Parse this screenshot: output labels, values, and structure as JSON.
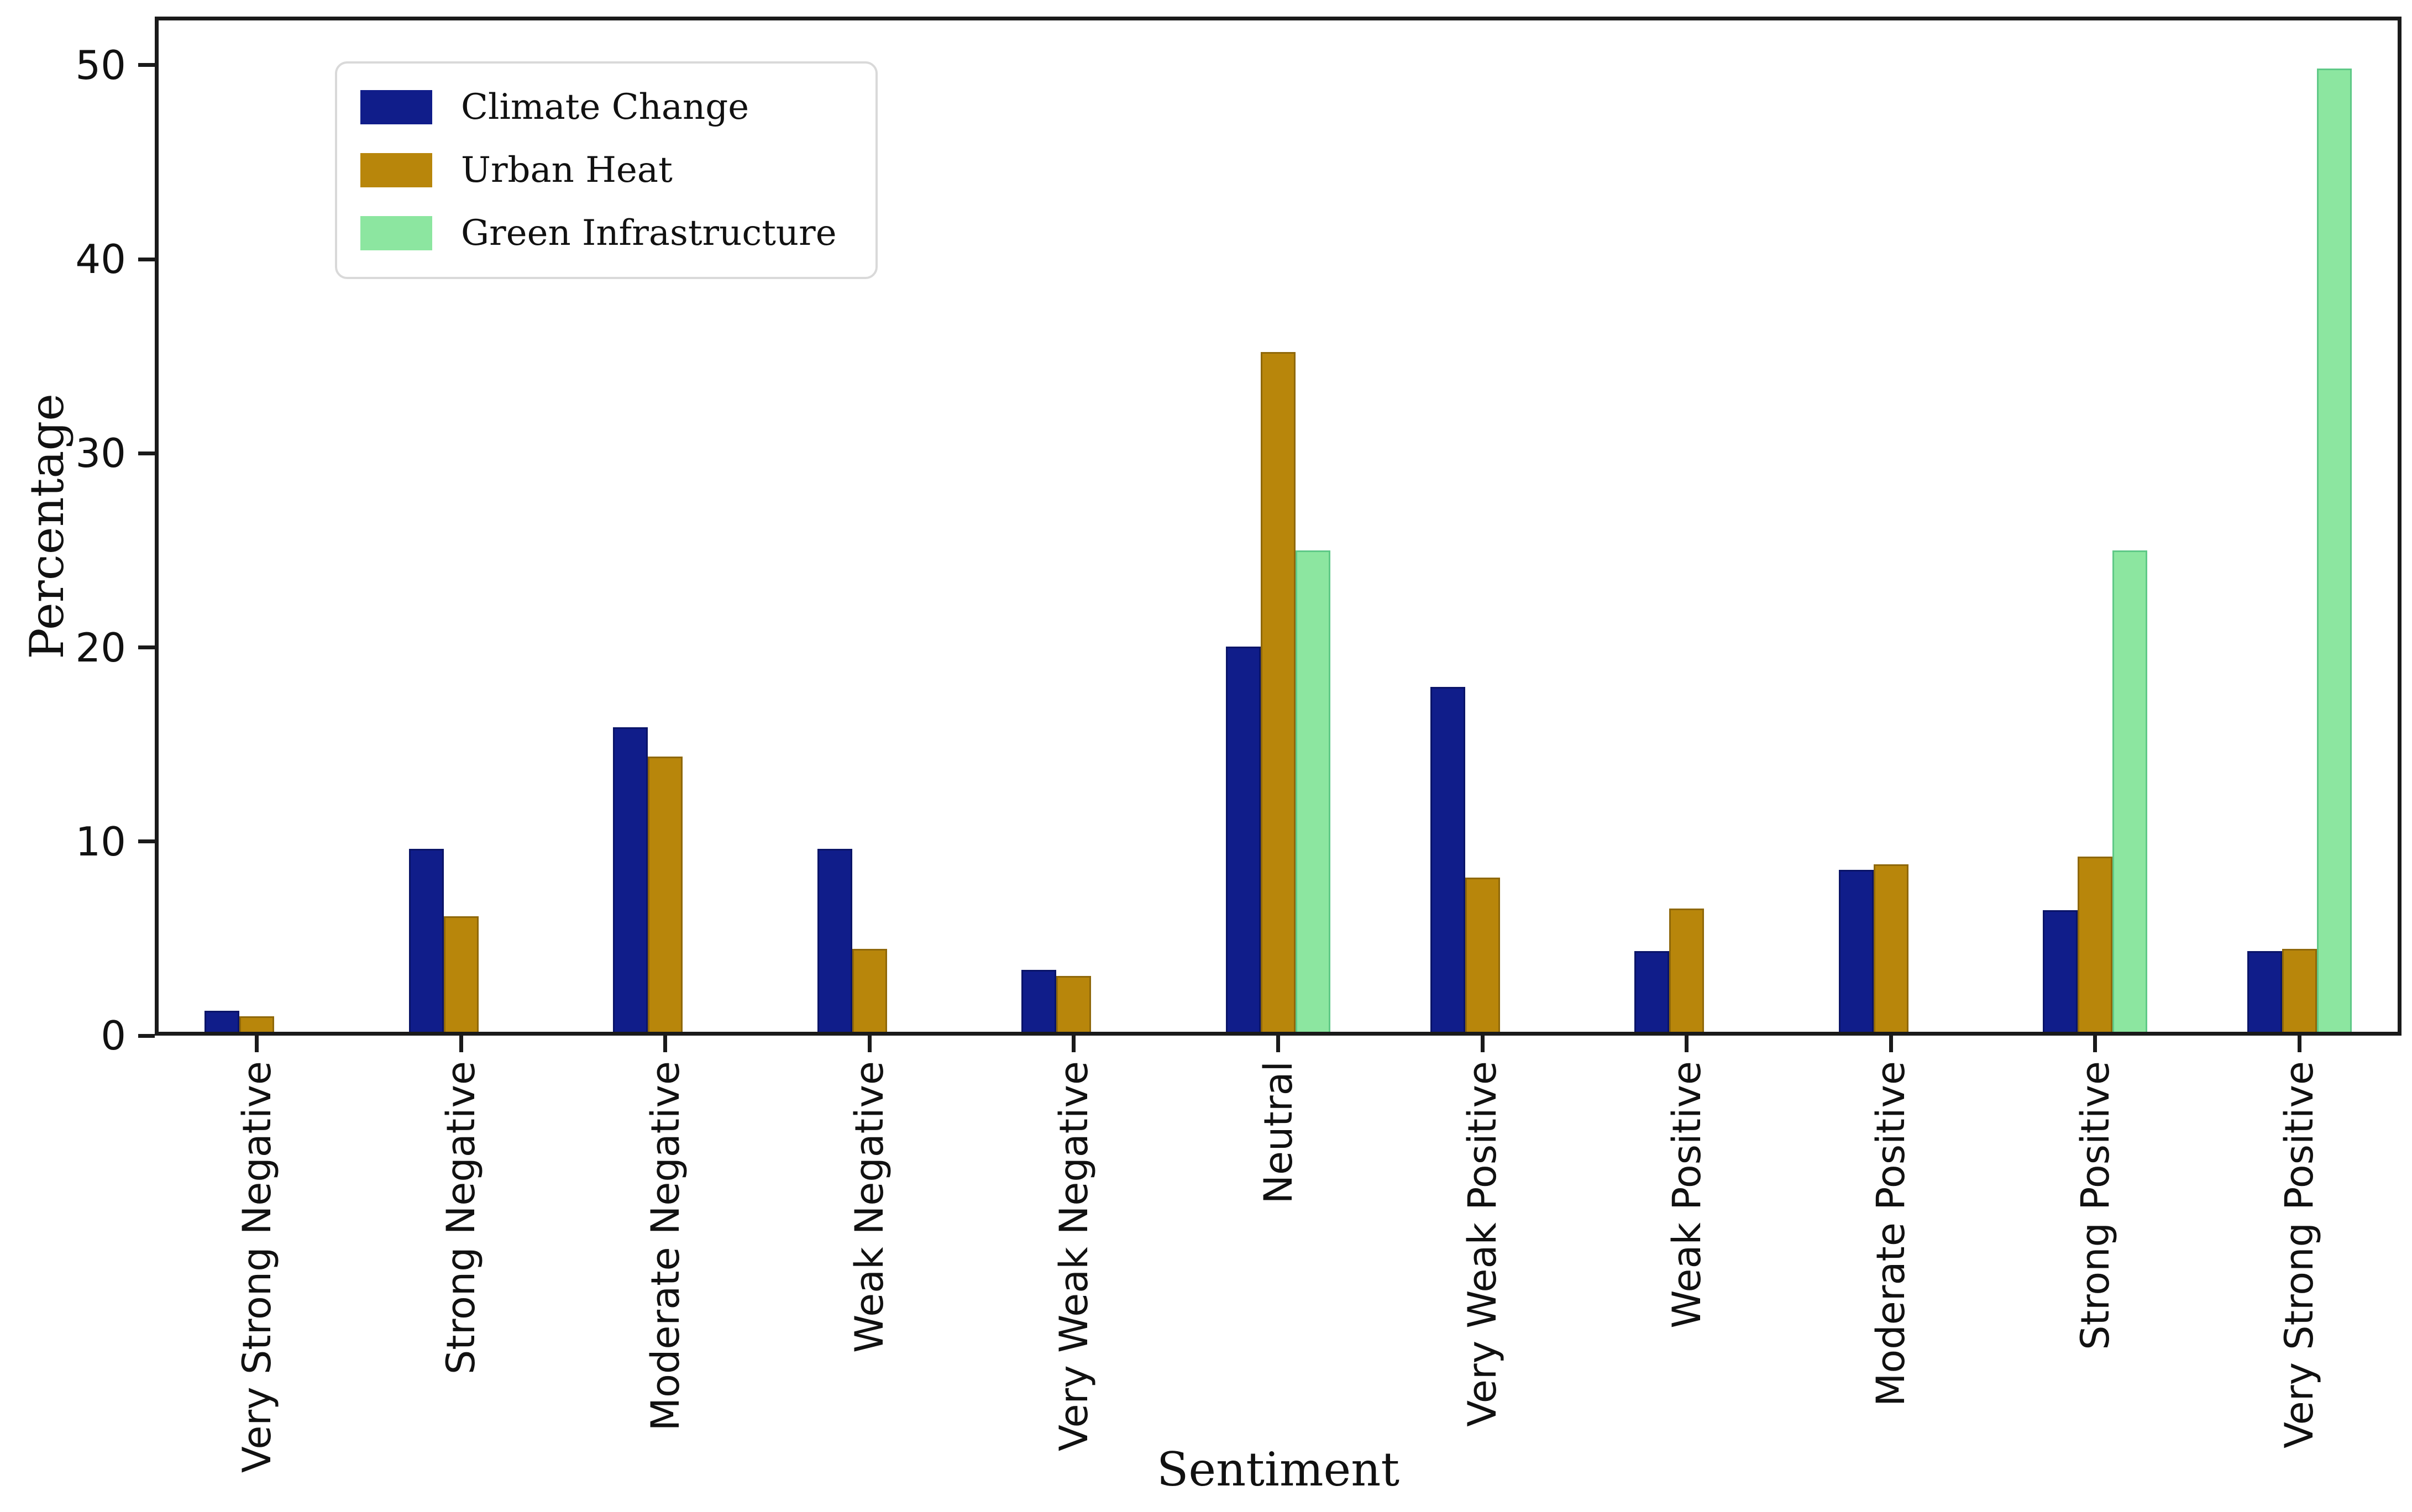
{
  "chart_data": {
    "type": "bar",
    "title": "",
    "xlabel": "Sentiment",
    "ylabel": "Percentage",
    "ylim": [
      0,
      52.5
    ],
    "yticks": [
      0,
      10,
      20,
      30,
      40,
      50
    ],
    "grid": false,
    "legend_position": "upper left",
    "background_color": "#ffffff",
    "axis_color": "#1a1a1a",
    "legend_border_color": "#d9d9d9",
    "categories": [
      "Very Strong Negative",
      "Strong Negative",
      "Moderate Negative",
      "Weak Negative",
      "Very Weak Negative",
      "Neutral",
      "Very Weak Positive",
      "Weak Positive",
      "Moderate Positive",
      "Strong Positive",
      "Very Strong Positive"
    ],
    "series": [
      {
        "name": "Climate Change",
        "color": "#101d8a",
        "edge_color": "#0a1468",
        "values": [
          1.1,
          9.5,
          15.8,
          9.5,
          3.2,
          20.0,
          17.9,
          4.2,
          8.4,
          6.3,
          4.2
        ]
      },
      {
        "name": "Urban Heat",
        "color": "#b8860b",
        "edge_color": "#8f680a",
        "values": [
          0.8,
          6.0,
          14.3,
          4.3,
          2.9,
          35.3,
          8.0,
          6.4,
          8.7,
          9.1,
          4.3
        ]
      },
      {
        "name": "Green Infrastructure",
        "color": "#8ce6a0",
        "edge_color": "#5fc987",
        "values": [
          0,
          0,
          0,
          0,
          0,
          25.0,
          0,
          0,
          0,
          25.0,
          50.0
        ]
      }
    ]
  }
}
